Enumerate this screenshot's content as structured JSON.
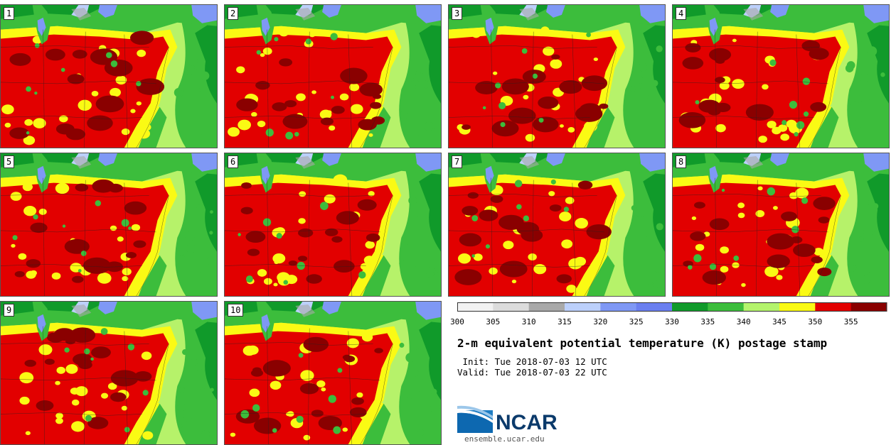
{
  "title": "2-m equivalent potential temperature (K) postage stamp",
  "init": " Init: Tue 2018-07-03 12 UTC",
  "valid": "Valid: Tue 2018-07-03 22 UTC",
  "logo_text": "NCAR",
  "logo_url": "ensemble.ucar.edu",
  "panels": [
    "1",
    "2",
    "3",
    "4",
    "5",
    "6",
    "7",
    "8",
    "9",
    "10"
  ],
  "colorbar": {
    "ticks": [
      "300",
      "305",
      "310",
      "315",
      "320",
      "325",
      "330",
      "335",
      "340",
      "345",
      "350",
      "355"
    ],
    "colors": [
      "#f2f2f2",
      "#dcdcdc",
      "#a9a9a9",
      "#bcd0fb",
      "#7f98f5",
      "#6b7ff0",
      "#109a2a",
      "#3cbd3c",
      "#b4f46c",
      "#fafa14",
      "#e20000",
      "#8a0000"
    ]
  },
  "map_colors": {
    "ocean": "#b6f26a",
    "land_green": "#3cbd3c",
    "dark_green": "#109a2a",
    "yellow": "#fafa14",
    "red": "#e20000",
    "dark_red": "#8a0000",
    "blue": "#7f98f5",
    "light_blue": "#bcd0fb",
    "gray": "#a9a9a9"
  }
}
